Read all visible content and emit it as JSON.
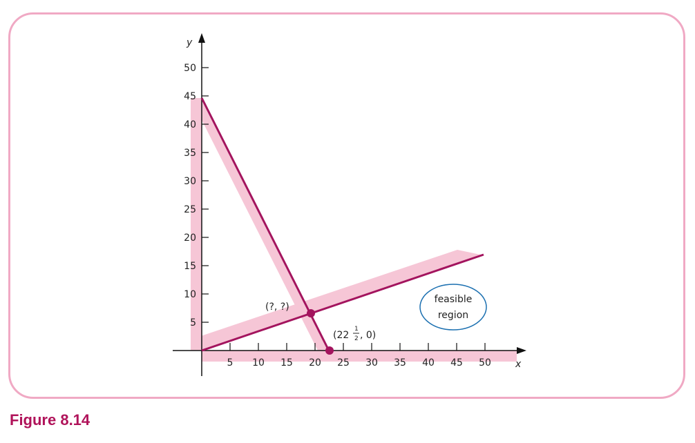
{
  "figure": {
    "caption": "Figure 8.14",
    "x_axis_label": "x",
    "y_axis_label": "y",
    "x_ticks": [
      "5",
      "10",
      "15",
      "20",
      "25",
      "30",
      "35",
      "40",
      "45",
      "50"
    ],
    "y_ticks": [
      "5",
      "10",
      "15",
      "20",
      "25",
      "30",
      "35",
      "40",
      "45",
      "50"
    ],
    "intersection_label": "(?, ?)",
    "point_label_prefix": "(22",
    "point_label_frac_num": "1",
    "point_label_frac_den": "2",
    "point_label_suffix": ", 0)",
    "region_label_line1": "feasible",
    "region_label_line2": "region",
    "colors": {
      "line": "#a3145e",
      "band": "#f6c6d6",
      "frame": "#f0a9c4",
      "caption": "#b0135a"
    }
  }
}
